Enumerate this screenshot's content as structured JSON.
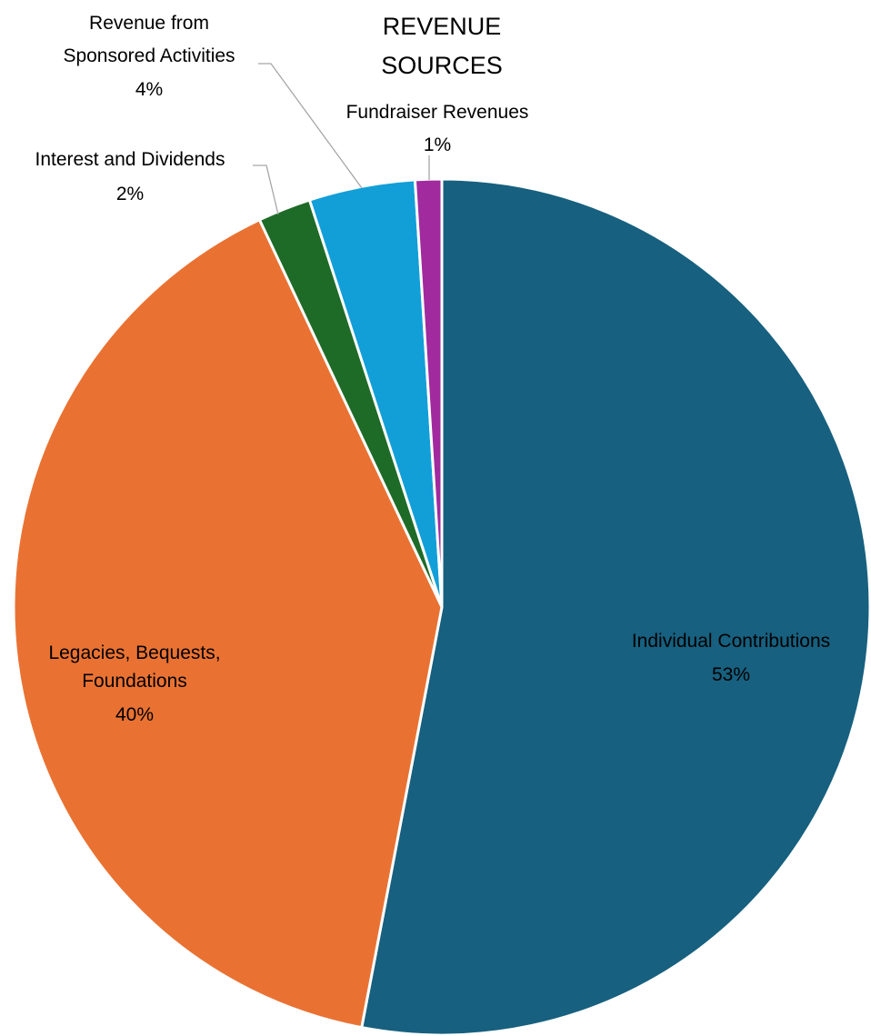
{
  "chart_data": {
    "type": "pie",
    "title": [
      "REVENUE",
      "SOURCES"
    ],
    "slices": [
      {
        "name": "Individual Contributions",
        "value": 53,
        "label": "53%",
        "color": "#17607F"
      },
      {
        "name": "Legacies, Bequests, Foundations",
        "value": 40,
        "label": "40%",
        "color": "#E97233"
      },
      {
        "name": "Interest and Dividends",
        "value": 2,
        "label": "2%",
        "color": "#1E6B28"
      },
      {
        "name": "Revenue from Sponsored Activities",
        "value": 4,
        "label": "4%",
        "color": "#129FD8"
      },
      {
        "name": "Fundraiser Revenues",
        "value": 1,
        "label": "1%",
        "color": "#A12A9E"
      }
    ],
    "legend": "none",
    "data_labels": "category name and percentage"
  }
}
